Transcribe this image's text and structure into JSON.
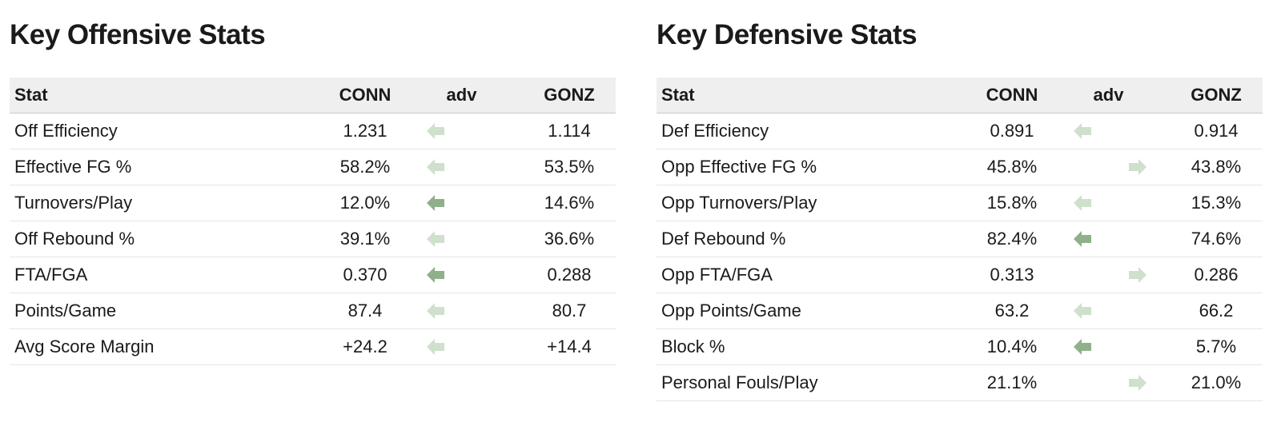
{
  "colors": {
    "arrow_light": "#cfe0cc",
    "arrow_dark": "#8fb08a",
    "header_bg": "#efefef"
  },
  "offensive": {
    "title": "Key Offensive Stats",
    "headers": {
      "stat": "Stat",
      "team1": "CONN",
      "adv": "adv",
      "team2": "GONZ"
    },
    "rows": [
      {
        "stat": "Off Efficiency",
        "team1": "1.231",
        "team2": "1.114",
        "adv": "left",
        "strength": "light"
      },
      {
        "stat": "Effective FG %",
        "team1": "58.2%",
        "team2": "53.5%",
        "adv": "left",
        "strength": "light"
      },
      {
        "stat": "Turnovers/Play",
        "team1": "12.0%",
        "team2": "14.6%",
        "adv": "left",
        "strength": "dark"
      },
      {
        "stat": "Off Rebound %",
        "team1": "39.1%",
        "team2": "36.6%",
        "adv": "left",
        "strength": "light"
      },
      {
        "stat": "FTA/FGA",
        "team1": "0.370",
        "team2": "0.288",
        "adv": "left",
        "strength": "dark"
      },
      {
        "stat": "Points/Game",
        "team1": "87.4",
        "team2": "80.7",
        "adv": "left",
        "strength": "light"
      },
      {
        "stat": "Avg Score Margin",
        "team1": "+24.2",
        "team2": "+14.4",
        "adv": "left",
        "strength": "light"
      }
    ]
  },
  "defensive": {
    "title": "Key Defensive Stats",
    "headers": {
      "stat": "Stat",
      "team1": "CONN",
      "adv": "adv",
      "team2": "GONZ"
    },
    "rows": [
      {
        "stat": "Def Efficiency",
        "team1": "0.891",
        "team2": "0.914",
        "adv": "left",
        "strength": "light"
      },
      {
        "stat": "Opp Effective FG %",
        "team1": "45.8%",
        "team2": "43.8%",
        "adv": "right",
        "strength": "light"
      },
      {
        "stat": "Opp Turnovers/Play",
        "team1": "15.8%",
        "team2": "15.3%",
        "adv": "left",
        "strength": "light"
      },
      {
        "stat": "Def Rebound %",
        "team1": "82.4%",
        "team2": "74.6%",
        "adv": "left",
        "strength": "dark"
      },
      {
        "stat": "Opp FTA/FGA",
        "team1": "0.313",
        "team2": "0.286",
        "adv": "right",
        "strength": "light"
      },
      {
        "stat": "Opp Points/Game",
        "team1": "63.2",
        "team2": "66.2",
        "adv": "left",
        "strength": "light"
      },
      {
        "stat": "Block %",
        "team1": "10.4%",
        "team2": "5.7%",
        "adv": "left",
        "strength": "dark"
      },
      {
        "stat": "Personal Fouls/Play",
        "team1": "21.1%",
        "team2": "21.0%",
        "adv": "right",
        "strength": "light"
      }
    ]
  }
}
